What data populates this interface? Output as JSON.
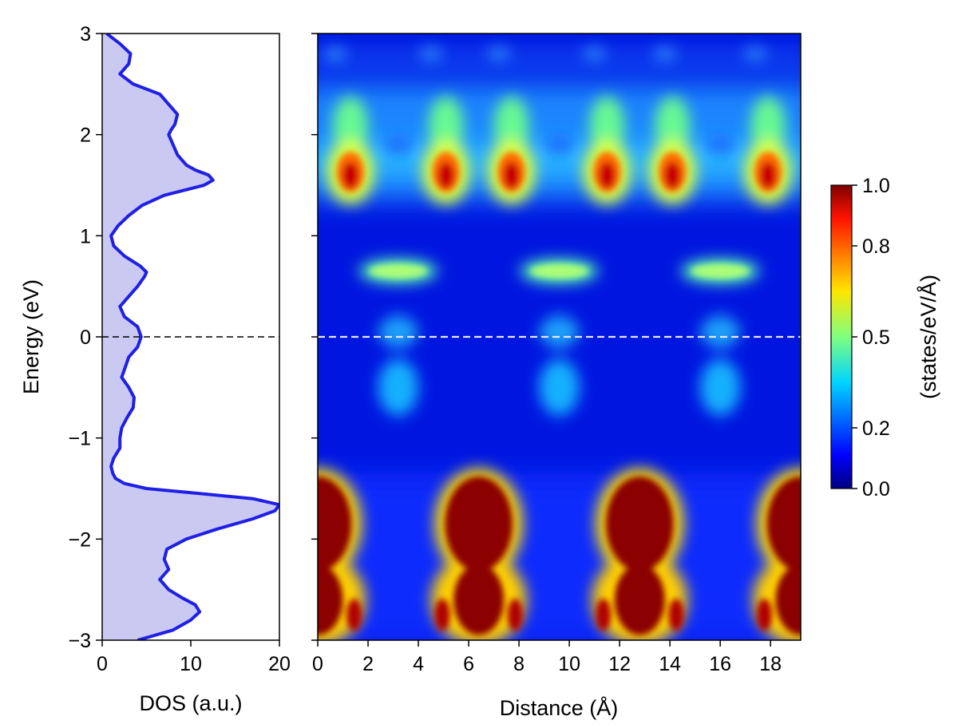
{
  "chart_data": [
    {
      "type": "area",
      "orientation": "vertical",
      "xlabel": "DOS (a.u.)",
      "ylabel": "Energy (eV)",
      "xlim": [
        0,
        20
      ],
      "ylim": [
        -3,
        3
      ],
      "xticks": [
        "0",
        "10",
        "20"
      ],
      "yticks": [
        "−3",
        "−2",
        "−1",
        "0",
        "1",
        "2",
        "3"
      ],
      "line_color": "#1f1fe6",
      "fill_color": "#c9c9f2",
      "fermi_level_line": {
        "energy": 0,
        "style": "dashed",
        "color": "#000000"
      },
      "energy": [
        -3.0,
        -2.9,
        -2.8,
        -2.72,
        -2.65,
        -2.58,
        -2.5,
        -2.4,
        -2.35,
        -2.3,
        -2.2,
        -2.1,
        -2.0,
        -1.9,
        -1.8,
        -1.72,
        -1.66,
        -1.6,
        -1.55,
        -1.5,
        -1.45,
        -1.4,
        -1.35,
        -1.28,
        -1.2,
        -1.1,
        -1.0,
        -0.9,
        -0.8,
        -0.7,
        -0.6,
        -0.5,
        -0.4,
        -0.3,
        -0.2,
        -0.1,
        0.0,
        0.1,
        0.2,
        0.3,
        0.4,
        0.5,
        0.6,
        0.64,
        0.7,
        0.8,
        0.9,
        1.0,
        1.1,
        1.2,
        1.3,
        1.4,
        1.5,
        1.55,
        1.6,
        1.65,
        1.7,
        1.8,
        1.9,
        2.0,
        2.05,
        2.1,
        2.2,
        2.3,
        2.4,
        2.5,
        2.6,
        2.7,
        2.8,
        2.9,
        3.0
      ],
      "dos": [
        4.0,
        8.0,
        10.0,
        11.0,
        10.5,
        9.0,
        7.5,
        6.5,
        7.0,
        7.5,
        7.0,
        7.3,
        9.5,
        13.0,
        17.0,
        19.5,
        20.0,
        17.0,
        11.0,
        5.0,
        2.5,
        1.5,
        1.2,
        1.0,
        1.3,
        2.0,
        2.0,
        2.2,
        2.8,
        3.5,
        3.6,
        3.0,
        2.2,
        2.6,
        3.0,
        4.0,
        4.4,
        4.0,
        2.5,
        2.0,
        3.0,
        4.0,
        4.8,
        5.0,
        4.3,
        2.5,
        1.3,
        1.0,
        1.8,
        3.0,
        4.5,
        7.0,
        11.5,
        12.5,
        12.0,
        10.5,
        9.5,
        8.5,
        8.0,
        7.5,
        7.8,
        8.2,
        8.5,
        7.5,
        6.5,
        3.5,
        2.0,
        3.0,
        3.2,
        2.0,
        0.5
      ]
    },
    {
      "type": "heatmap",
      "xlabel": "Distance (Å)",
      "ylabel": "",
      "xlim": [
        0,
        19.2
      ],
      "ylim": [
        -3,
        3
      ],
      "xticks": [
        "0",
        "2",
        "4",
        "6",
        "8",
        "10",
        "12",
        "14",
        "16",
        "18"
      ],
      "colormap": "jet",
      "colorbar": {
        "label": "(states/eV/Å)",
        "ticks": [
          "0.0",
          "0.2",
          "0.5",
          "0.8",
          "1.0"
        ],
        "min": 0.0,
        "max": 1.0
      },
      "fermi_level_line": {
        "energy": 0,
        "style": "dashed",
        "color": "#e6e6f0"
      },
      "background_value": 0.08,
      "features": [
        {
          "x": 1.3,
          "energy": 1.63,
          "value": 1.0
        },
        {
          "x": 5.1,
          "energy": 1.63,
          "value": 1.0
        },
        {
          "x": 7.7,
          "energy": 1.63,
          "value": 1.0
        },
        {
          "x": 11.5,
          "energy": 1.63,
          "value": 1.0
        },
        {
          "x": 14.1,
          "energy": 1.63,
          "value": 1.0
        },
        {
          "x": 17.9,
          "energy": 1.63,
          "value": 1.0
        },
        {
          "x": 3.2,
          "energy": 0.65,
          "value": 0.45
        },
        {
          "x": 9.6,
          "energy": 0.65,
          "value": 0.45
        },
        {
          "x": 16.0,
          "energy": 0.65,
          "value": 0.45
        },
        {
          "x": 3.2,
          "energy": 0.05,
          "value": 0.35
        },
        {
          "x": 9.6,
          "energy": 0.05,
          "value": 0.35
        },
        {
          "x": 16.0,
          "energy": 0.05,
          "value": 0.35
        },
        {
          "x": 3.2,
          "energy": -0.5,
          "value": 0.3
        },
        {
          "x": 9.6,
          "energy": -0.5,
          "value": 0.3
        },
        {
          "x": 16.0,
          "energy": -0.5,
          "value": 0.3
        },
        {
          "x": 0.0,
          "energy": -2.2,
          "value": 1.0
        },
        {
          "x": 6.4,
          "energy": -2.2,
          "value": 1.0
        },
        {
          "x": 12.8,
          "energy": -2.2,
          "value": 1.0
        },
        {
          "x": 19.2,
          "energy": -2.2,
          "value": 1.0
        }
      ]
    }
  ]
}
